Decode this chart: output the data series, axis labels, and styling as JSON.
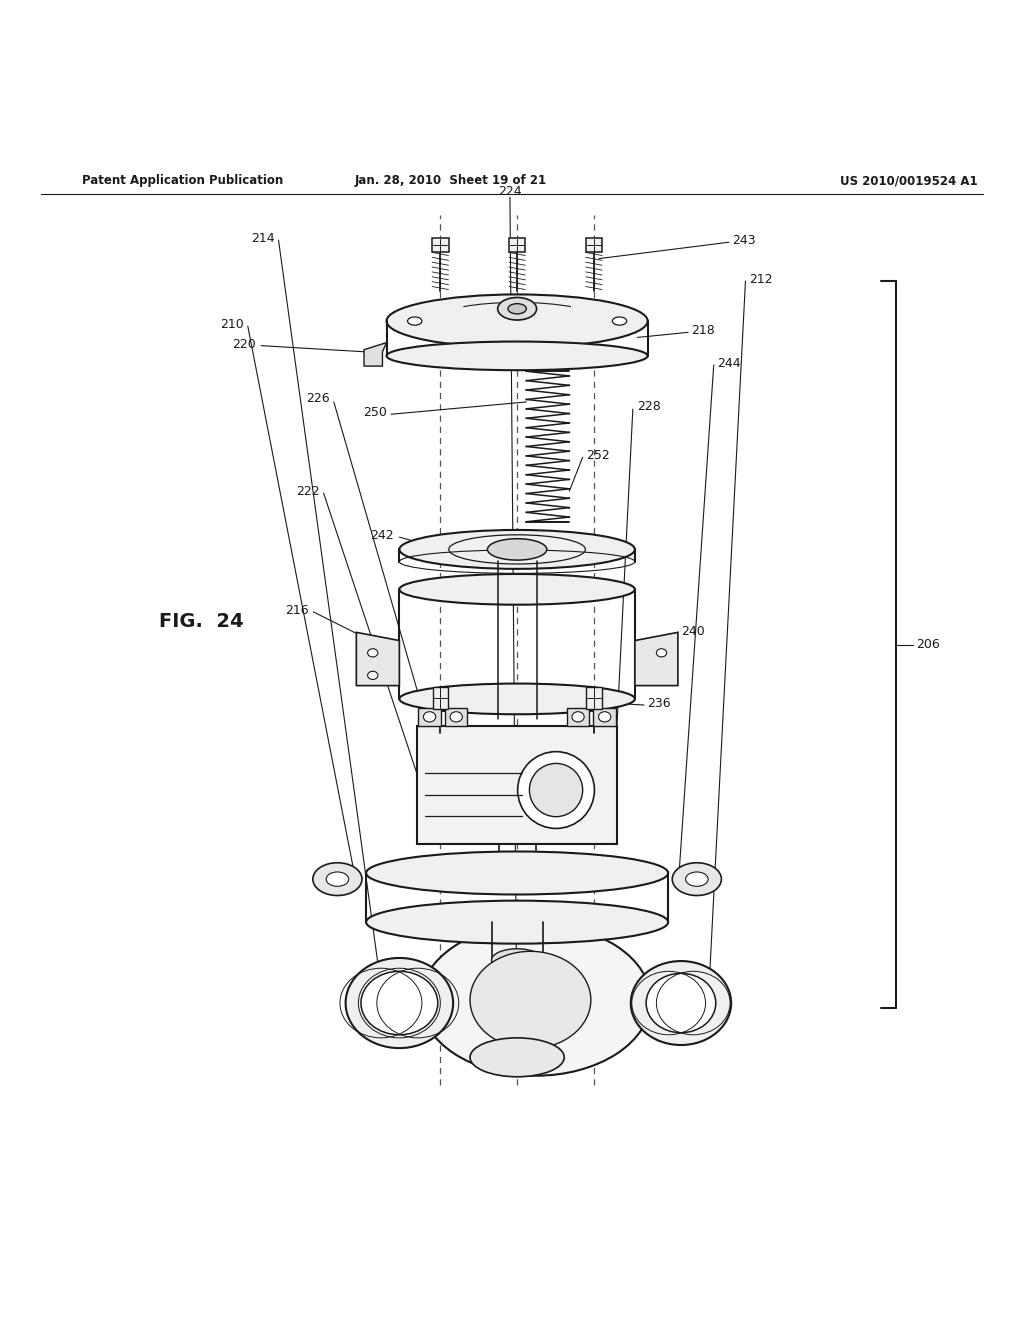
{
  "title_left": "Patent Application Publication",
  "title_mid": "Jan. 28, 2010  Sheet 19 of 21",
  "title_right": "US 2010/0019524 A1",
  "fig_label": "FIG.  24",
  "bg_color": "#ffffff",
  "line_color": "#1a1a1a"
}
